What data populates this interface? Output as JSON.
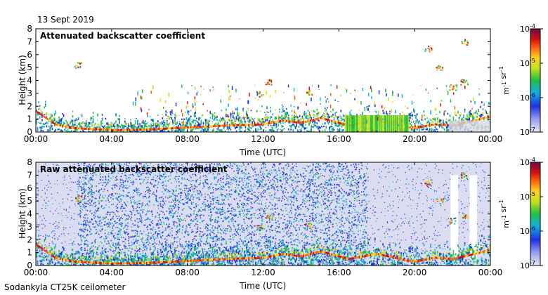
{
  "header": {
    "date": "13 Sept 2019"
  },
  "footer": {
    "instrument": "Sodankyla CT25K ceilometer"
  },
  "chart_data": [
    {
      "type": "heatmap",
      "title": "Attenuated backscatter coefficient",
      "xlabel": "Time (UTC)",
      "ylabel": "Height (km)",
      "x_ticks": [
        "00:00",
        "04:00",
        "08:00",
        "12:00",
        "16:00",
        "20:00",
        "00:00"
      ],
      "x_range_hours": [
        0,
        24
      ],
      "y_ticks": [
        0,
        1,
        2,
        3,
        4,
        5,
        6,
        7,
        8
      ],
      "ylim": [
        0,
        8
      ],
      "colorbar": {
        "scale": "log",
        "range": [
          1e-07,
          0.0001
        ],
        "ticks": [
          "10^-7",
          "10^-6",
          "10^-5",
          "10^-4"
        ],
        "label": "m^-1 sr^-1"
      },
      "cloud_base_km": [
        [
          0.0,
          1.6
        ],
        [
          1.0,
          0.6
        ],
        [
          2.0,
          0.3
        ],
        [
          4.0,
          0.15
        ],
        [
          6.0,
          0.2
        ],
        [
          8.0,
          0.35
        ],
        [
          10.0,
          0.5
        ],
        [
          12.0,
          0.6
        ],
        [
          13.0,
          0.9
        ],
        [
          14.0,
          0.7
        ],
        [
          15.0,
          1.1
        ],
        [
          16.5,
          0.5
        ],
        [
          18.0,
          0.9
        ],
        [
          19.5,
          0.4
        ],
        [
          20.0,
          0.3
        ],
        [
          21.0,
          0.6
        ],
        [
          22.0,
          0.5
        ],
        [
          24.0,
          1.2
        ]
      ],
      "aloft_features": [
        {
          "hour": 2.2,
          "height_km": 5.2
        },
        {
          "hour": 11.8,
          "height_km": 3.0
        },
        {
          "hour": 12.3,
          "height_km": 3.9
        },
        {
          "hour": 14.4,
          "height_km": 3.1
        },
        {
          "hour": 20.7,
          "height_km": 6.5
        },
        {
          "hour": 21.3,
          "height_km": 5.0
        },
        {
          "hour": 22.0,
          "height_km": 3.5
        },
        {
          "hour": 22.6,
          "height_km": 3.9
        },
        {
          "hour": 22.6,
          "height_km": 7.0
        }
      ]
    },
    {
      "type": "heatmap",
      "title": "Raw attenuated backscatter coefficient",
      "xlabel": "Time (UTC)",
      "ylabel": "Height (km)",
      "x_ticks": [
        "00:00",
        "04:00",
        "08:00",
        "12:00",
        "16:00",
        "20:00",
        "00:00"
      ],
      "x_range_hours": [
        0,
        24
      ],
      "y_ticks": [
        0,
        1,
        2,
        3,
        4,
        5,
        6,
        7,
        8
      ],
      "ylim": [
        0,
        8
      ],
      "colorbar": {
        "scale": "log",
        "range": [
          1e-07,
          0.0001
        ],
        "ticks": [
          "10^-7",
          "10^-6",
          "10^-5",
          "10^-4"
        ],
        "label": "m^-1 sr^-1"
      },
      "noise_region_hours": [
        2.2,
        17.5
      ]
    }
  ]
}
